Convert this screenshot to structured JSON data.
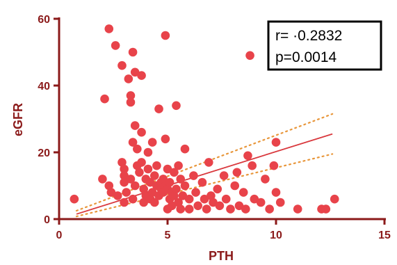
{
  "chart_data": {
    "type": "scatter",
    "xlabel": "PTH",
    "ylabel": "eGFR",
    "xlim": [
      0,
      15
    ],
    "ylim": [
      0,
      60
    ],
    "x_ticks": [
      "0",
      "5",
      "10",
      "15"
    ],
    "y_ticks": [
      "0",
      "20",
      "40",
      "60"
    ],
    "grid": false,
    "colors": {
      "points": "#e8434a",
      "fit_line": "#d9383d",
      "confidence_band": "#e8963a",
      "axis": "#8b1a1a"
    },
    "annotation": {
      "r_text": "r= ·0.2832",
      "p_text": "p=0.0014",
      "position": "top-right"
    },
    "fit": {
      "x_range": [
        0.8,
        12.6
      ],
      "y_at_start": 1.5,
      "y_at_end": 25.5
    },
    "confidence_band": {
      "upper": {
        "y_at_start": 2.5,
        "y_at_end": 31.5
      },
      "lower": {
        "y_at_start": 0.8,
        "y_at_end": 19.5
      }
    },
    "points": [
      {
        "x": 0.7,
        "y": 6
      },
      {
        "x": 2.0,
        "y": 12
      },
      {
        "x": 2.1,
        "y": 36
      },
      {
        "x": 2.3,
        "y": 57
      },
      {
        "x": 2.3,
        "y": 10
      },
      {
        "x": 2.4,
        "y": 8
      },
      {
        "x": 2.6,
        "y": 52
      },
      {
        "x": 2.7,
        "y": 7
      },
      {
        "x": 2.9,
        "y": 46
      },
      {
        "x": 2.9,
        "y": 17
      },
      {
        "x": 3.0,
        "y": 15
      },
      {
        "x": 3.0,
        "y": 13
      },
      {
        "x": 3.0,
        "y": 11
      },
      {
        "x": 3.0,
        "y": 5
      },
      {
        "x": 3.1,
        "y": 8
      },
      {
        "x": 3.2,
        "y": 42
      },
      {
        "x": 3.3,
        "y": 37
      },
      {
        "x": 3.3,
        "y": 35
      },
      {
        "x": 3.3,
        "y": 12
      },
      {
        "x": 3.4,
        "y": 50
      },
      {
        "x": 3.4,
        "y": 23
      },
      {
        "x": 3.4,
        "y": 6
      },
      {
        "x": 3.5,
        "y": 44
      },
      {
        "x": 3.5,
        "y": 28
      },
      {
        "x": 3.5,
        "y": 10
      },
      {
        "x": 3.6,
        "y": 21
      },
      {
        "x": 3.6,
        "y": 16
      },
      {
        "x": 3.7,
        "y": 14
      },
      {
        "x": 3.8,
        "y": 43
      },
      {
        "x": 3.8,
        "y": 26
      },
      {
        "x": 3.8,
        "y": 17
      },
      {
        "x": 3.9,
        "y": 9
      },
      {
        "x": 3.9,
        "y": 5
      },
      {
        "x": 4.0,
        "y": 12
      },
      {
        "x": 4.0,
        "y": 7
      },
      {
        "x": 4.1,
        "y": 20
      },
      {
        "x": 4.1,
        "y": 15
      },
      {
        "x": 4.2,
        "y": 11
      },
      {
        "x": 4.2,
        "y": 6
      },
      {
        "x": 4.3,
        "y": 23
      },
      {
        "x": 4.3,
        "y": 8
      },
      {
        "x": 4.4,
        "y": 13
      },
      {
        "x": 4.4,
        "y": 5
      },
      {
        "x": 4.5,
        "y": 16
      },
      {
        "x": 4.5,
        "y": 10
      },
      {
        "x": 4.6,
        "y": 33
      },
      {
        "x": 4.6,
        "y": 7
      },
      {
        "x": 4.7,
        "y": 11
      },
      {
        "x": 4.7,
        "y": 9
      },
      {
        "x": 4.8,
        "y": 12
      },
      {
        "x": 4.8,
        "y": 8
      },
      {
        "x": 4.9,
        "y": 55
      },
      {
        "x": 4.9,
        "y": 24
      },
      {
        "x": 4.9,
        "y": 10
      },
      {
        "x": 5.0,
        "y": 15
      },
      {
        "x": 5.0,
        "y": 9
      },
      {
        "x": 5.0,
        "y": 3
      },
      {
        "x": 5.1,
        "y": 11
      },
      {
        "x": 5.1,
        "y": 6
      },
      {
        "x": 5.2,
        "y": 8
      },
      {
        "x": 5.2,
        "y": 4
      },
      {
        "x": 5.3,
        "y": 14
      },
      {
        "x": 5.3,
        "y": 7
      },
      {
        "x": 5.4,
        "y": 34
      },
      {
        "x": 5.4,
        "y": 9
      },
      {
        "x": 5.5,
        "y": 16
      },
      {
        "x": 5.5,
        "y": 5
      },
      {
        "x": 5.6,
        "y": 12
      },
      {
        "x": 5.6,
        "y": 3
      },
      {
        "x": 5.7,
        "y": 7
      },
      {
        "x": 5.8,
        "y": 21
      },
      {
        "x": 5.8,
        "y": 10
      },
      {
        "x": 6.0,
        "y": 6
      },
      {
        "x": 6.0,
        "y": 3
      },
      {
        "x": 6.2,
        "y": 13
      },
      {
        "x": 6.3,
        "y": 8
      },
      {
        "x": 6.4,
        "y": 4
      },
      {
        "x": 6.6,
        "y": 11
      },
      {
        "x": 6.7,
        "y": 6
      },
      {
        "x": 6.8,
        "y": 3
      },
      {
        "x": 6.9,
        "y": 17
      },
      {
        "x": 7.0,
        "y": 7
      },
      {
        "x": 7.1,
        "y": 5
      },
      {
        "x": 7.3,
        "y": 9
      },
      {
        "x": 7.4,
        "y": 4
      },
      {
        "x": 7.6,
        "y": 13
      },
      {
        "x": 7.7,
        "y": 6
      },
      {
        "x": 7.9,
        "y": 3
      },
      {
        "x": 8.1,
        "y": 10
      },
      {
        "x": 8.2,
        "y": 14
      },
      {
        "x": 8.3,
        "y": 4
      },
      {
        "x": 8.5,
        "y": 8
      },
      {
        "x": 8.6,
        "y": 3
      },
      {
        "x": 8.7,
        "y": 19
      },
      {
        "x": 8.8,
        "y": 49
      },
      {
        "x": 8.9,
        "y": 16
      },
      {
        "x": 9.0,
        "y": 6
      },
      {
        "x": 9.3,
        "y": 5
      },
      {
        "x": 9.5,
        "y": 12
      },
      {
        "x": 9.7,
        "y": 3
      },
      {
        "x": 9.9,
        "y": 16
      },
      {
        "x": 10.0,
        "y": 8
      },
      {
        "x": 10.0,
        "y": 23
      },
      {
        "x": 10.2,
        "y": 5
      },
      {
        "x": 11.0,
        "y": 3
      },
      {
        "x": 12.1,
        "y": 3
      },
      {
        "x": 12.3,
        "y": 3
      },
      {
        "x": 12.7,
        "y": 6
      }
    ]
  }
}
